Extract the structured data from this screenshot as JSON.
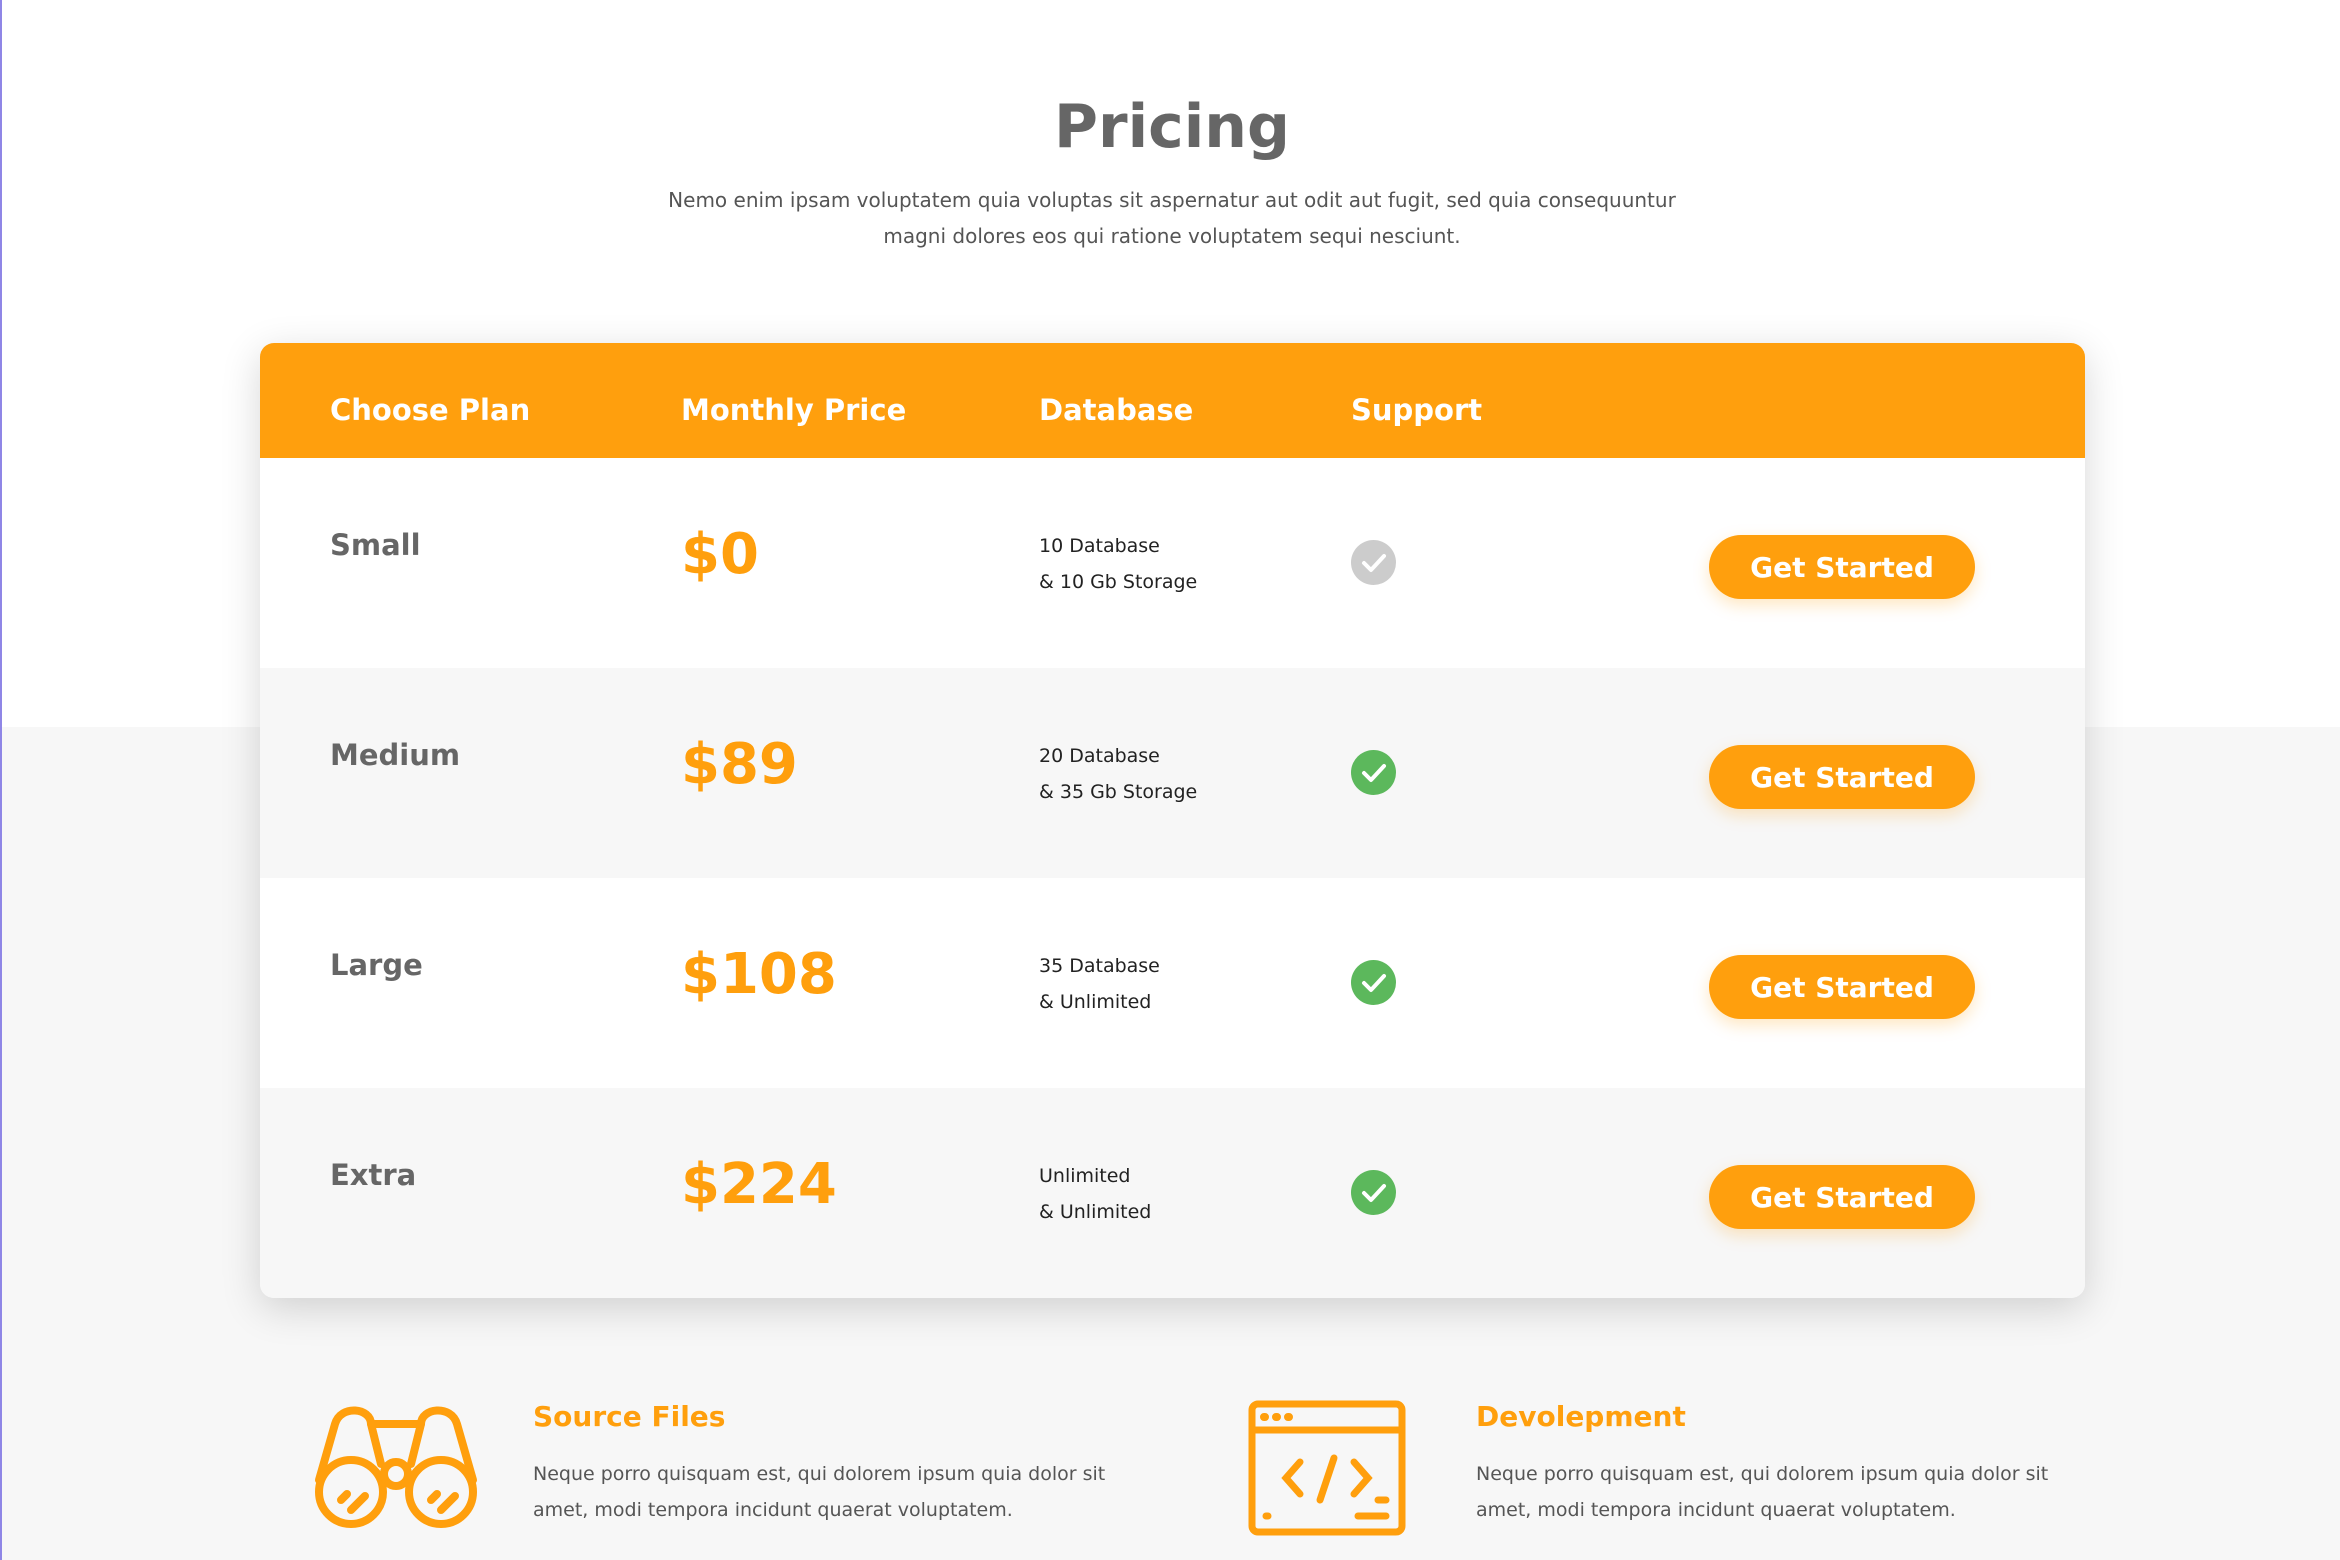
{
  "header": {
    "title": "Pricing",
    "subtitle": "Nemo enim ipsam voluptatem quia voluptas sit aspernatur aut odit aut fugit, sed quia consequuntur magni dolores eos qui ratione voluptatem sequi nesciunt."
  },
  "table": {
    "columns": [
      "Choose Plan",
      "Monthly Price",
      "Database",
      "Support"
    ],
    "rows": [
      {
        "plan": "Small",
        "price": "$0",
        "db1": "10 Database",
        "db2": "& 10 Gb Storage",
        "support": false,
        "button": "Get Started"
      },
      {
        "plan": "Medium",
        "price": "$89",
        "db1": "20 Database",
        "db2": "& 35 Gb Storage",
        "support": true,
        "button": "Get Started"
      },
      {
        "plan": "Large",
        "price": "$108",
        "db1": "35 Database",
        "db2": "& Unlimited",
        "support": true,
        "button": "Get Started"
      },
      {
        "plan": "Extra",
        "price": "$224",
        "db1": "Unlimited",
        "db2": "& Unlimited",
        "support": true,
        "button": "Get Started"
      }
    ]
  },
  "features": [
    {
      "icon": "binoculars-icon",
      "title": "Source Files",
      "desc1": "Neque porro quisquam est, qui dolorem ipsum quia dolor sit",
      "desc2": "amet, modi tempora incidunt  quaerat voluptatem."
    },
    {
      "icon": "code-window-icon",
      "title": "Devolepment",
      "desc1": "Neque porro quisquam est, qui dolorem ipsum quia dolor sit",
      "desc2": "amet, modi tempora incidunt  quaerat voluptatem."
    }
  ],
  "colors": {
    "accent": "#ff9f0d",
    "check_active": "#5cb85c",
    "check_inactive": "#cccccc"
  }
}
